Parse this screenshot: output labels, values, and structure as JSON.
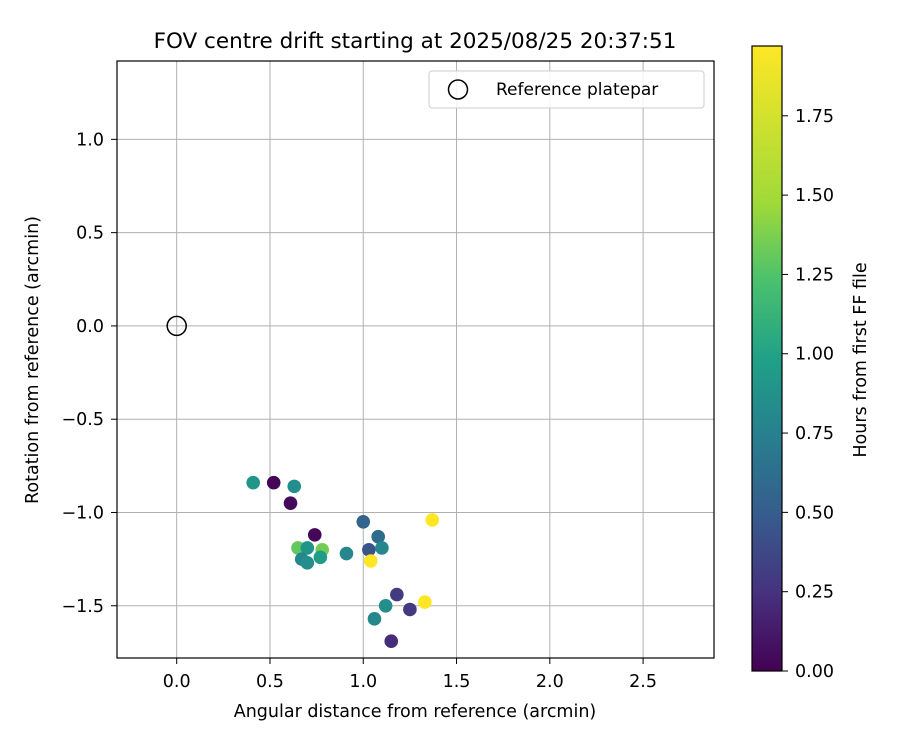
{
  "chart_data": {
    "type": "scatter",
    "title": "FOV centre drift starting at 2025/08/25 20:37:51",
    "xlabel": "Angular distance from reference (arcmin)",
    "ylabel": "Rotation from reference (arcmin)",
    "colorbar_label": "Hours from first FF file",
    "xlim": [
      -0.32,
      2.88
    ],
    "ylim": [
      -1.78,
      1.42
    ],
    "colorbar_lim": [
      0.0,
      1.97
    ],
    "colormap": "viridis",
    "grid": true,
    "legend_position": "top-right",
    "xticks": [
      0.0,
      0.5,
      1.0,
      1.5,
      2.0,
      2.5
    ],
    "xtick_labels": [
      "0.0",
      "0.5",
      "1.0",
      "1.5",
      "2.0",
      "2.5"
    ],
    "yticks": [
      1.0,
      0.5,
      0.0,
      -0.5,
      -1.0,
      -1.5
    ],
    "ytick_labels": [
      "1.0",
      "0.5",
      "0.0",
      "−0.5",
      "−1.0",
      "−1.5"
    ],
    "colorbar_ticks": [
      0.0,
      0.25,
      0.5,
      0.75,
      1.0,
      1.25,
      1.5,
      1.75
    ],
    "colorbar_tick_labels": [
      "0.00",
      "0.25",
      "0.50",
      "0.75",
      "1.00",
      "1.25",
      "1.50",
      "1.75"
    ],
    "reference": {
      "label": "Reference platepar",
      "x": 0.0,
      "y": 0.0
    },
    "points": [
      {
        "x": 0.41,
        "y": -0.84,
        "t": 0.9
      },
      {
        "x": 0.52,
        "y": -0.84,
        "t": 0.02
      },
      {
        "x": 0.63,
        "y": -0.86,
        "t": 0.85
      },
      {
        "x": 0.61,
        "y": -0.95,
        "t": 0.05
      },
      {
        "x": 0.74,
        "y": -1.12,
        "t": 0.03
      },
      {
        "x": 0.65,
        "y": -1.19,
        "t": 1.3
      },
      {
        "x": 0.7,
        "y": -1.19,
        "t": 0.9
      },
      {
        "x": 0.78,
        "y": -1.2,
        "t": 1.35
      },
      {
        "x": 0.67,
        "y": -1.25,
        "t": 0.8
      },
      {
        "x": 0.7,
        "y": -1.27,
        "t": 0.85
      },
      {
        "x": 0.77,
        "y": -1.24,
        "t": 0.95
      },
      {
        "x": 0.91,
        "y": -1.22,
        "t": 0.78
      },
      {
        "x": 1.0,
        "y": -1.05,
        "t": 0.55
      },
      {
        "x": 1.03,
        "y": -1.2,
        "t": 0.45
      },
      {
        "x": 1.08,
        "y": -1.13,
        "t": 0.6
      },
      {
        "x": 1.1,
        "y": -1.19,
        "t": 0.8
      },
      {
        "x": 1.04,
        "y": -1.26,
        "t": 1.97
      },
      {
        "x": 1.37,
        "y": -1.04,
        "t": 1.97
      },
      {
        "x": 1.33,
        "y": -1.48,
        "t": 1.97
      },
      {
        "x": 1.18,
        "y": -1.44,
        "t": 0.3
      },
      {
        "x": 1.12,
        "y": -1.5,
        "t": 0.85
      },
      {
        "x": 1.25,
        "y": -1.52,
        "t": 0.3
      },
      {
        "x": 1.06,
        "y": -1.57,
        "t": 0.8
      },
      {
        "x": 1.15,
        "y": -1.69,
        "t": 0.22
      }
    ]
  }
}
